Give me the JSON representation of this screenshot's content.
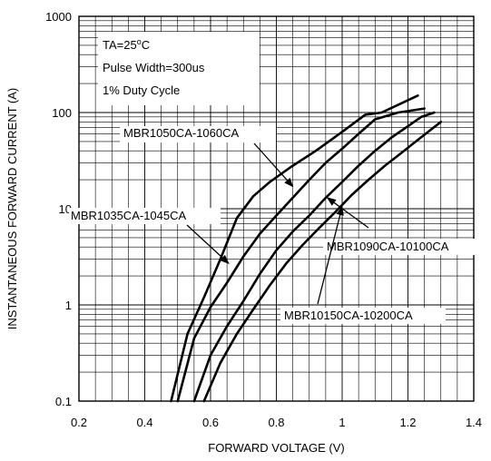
{
  "chart_data": {
    "type": "line",
    "xlabel": "FORWARD VOLTAGE (V)",
    "ylabel": "INSTANTANEOUS FORWARD CURRENT (A)",
    "xlim": [
      0.2,
      1.4
    ],
    "ylim": [
      0.1,
      1000
    ],
    "yscale": "log",
    "grid": true,
    "x_ticks": [
      "0.2",
      "0.4",
      "0.6",
      "0.8",
      "1",
      "1.2",
      "1.4"
    ],
    "y_ticks": [
      "0.1",
      "1",
      "10",
      "100",
      "1000"
    ],
    "annotations": [
      "TA=25°C",
      "Pulse Width=300us",
      "1% Duty Cycle"
    ],
    "series": [
      {
        "name": "MBR1035CA-1045CA",
        "x": [
          0.48,
          0.53,
          0.58,
          0.63,
          0.68,
          0.73,
          0.78,
          0.85,
          0.92,
          1.0,
          1.07,
          1.12,
          1.17,
          1.23
        ],
        "y": [
          0.1,
          0.5,
          1.2,
          3.0,
          8.0,
          13.5,
          19,
          28,
          40,
          63,
          95,
          100,
          120,
          150
        ]
      },
      {
        "name": "MBR1050CA-1060CA",
        "x": [
          0.5,
          0.55,
          0.6,
          0.65,
          0.7,
          0.75,
          0.8,
          0.85,
          0.9,
          0.95,
          1.0,
          1.05,
          1.1,
          1.17,
          1.25
        ],
        "y": [
          0.1,
          0.45,
          0.95,
          1.7,
          3.2,
          5.5,
          8.5,
          13,
          20,
          30,
          42,
          60,
          85,
          100,
          110
        ]
      },
      {
        "name": "MBR1090CA-10100CA",
        "x": [
          0.55,
          0.6,
          0.65,
          0.7,
          0.75,
          0.8,
          0.85,
          0.9,
          0.95,
          1.0,
          1.05,
          1.1,
          1.15,
          1.2,
          1.24,
          1.28
        ],
        "y": [
          0.1,
          0.3,
          0.6,
          1.1,
          2.1,
          3.7,
          5.8,
          8.5,
          13,
          19,
          28,
          40,
          55,
          72,
          90,
          100
        ]
      },
      {
        "name": "MBR10150CA-10200CA",
        "x": [
          0.58,
          0.63,
          0.68,
          0.73,
          0.78,
          0.83,
          0.88,
          0.93,
          0.98,
          1.03,
          1.08,
          1.13,
          1.18,
          1.23,
          1.3
        ],
        "y": [
          0.1,
          0.25,
          0.5,
          0.9,
          1.6,
          2.7,
          4.2,
          6.3,
          9.3,
          14,
          20,
          28,
          38,
          52,
          80
        ]
      }
    ]
  }
}
